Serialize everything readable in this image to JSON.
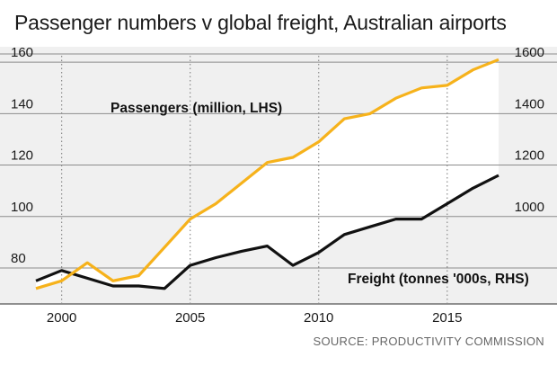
{
  "header": {
    "title": "Passenger numbers v global freight, Australian airports"
  },
  "footer": {
    "source": "SOURCE: PRODUCTIVITY COMMISSION"
  },
  "chart_data": {
    "type": "line",
    "title": "Passenger numbers v global freight, Australian airports",
    "x": [
      1999,
      2000,
      2001,
      2002,
      2003,
      2004,
      2005,
      2006,
      2007,
      2008,
      2009,
      2010,
      2011,
      2012,
      2013,
      2014,
      2015,
      2016,
      2017
    ],
    "x_ticks": [
      "2000",
      "2005",
      "2010",
      "2015"
    ],
    "y_left_ticks": [
      "80",
      "100",
      "120",
      "140",
      "160"
    ],
    "y_right_ticks": [
      "1000",
      "1200",
      "1400",
      "1600"
    ],
    "ylim_left": [
      66,
      166
    ],
    "ylim_right": [
      660,
      1660
    ],
    "gridlines": "horizontal solid, vertical dotted at 2000/2005/2010/2015",
    "series": [
      {
        "name": "Passengers (million, LHS)",
        "axis": "left",
        "color": "#f6b21b",
        "values": [
          72,
          75,
          82,
          75,
          77,
          88,
          99,
          105,
          113,
          121,
          123,
          129,
          138,
          140,
          146,
          150,
          151,
          157,
          161
        ]
      },
      {
        "name": "Freight (tonnes '000s, RHS)",
        "axis": "right",
        "color": "#111111",
        "values": [
          750,
          790,
          760,
          730,
          730,
          720,
          810,
          840,
          865,
          885,
          810,
          860,
          930,
          960,
          990,
          990,
          1050,
          1110,
          1160
        ]
      }
    ],
    "fill_between": "#f0f0f0",
    "background": "#f0f0f0"
  }
}
